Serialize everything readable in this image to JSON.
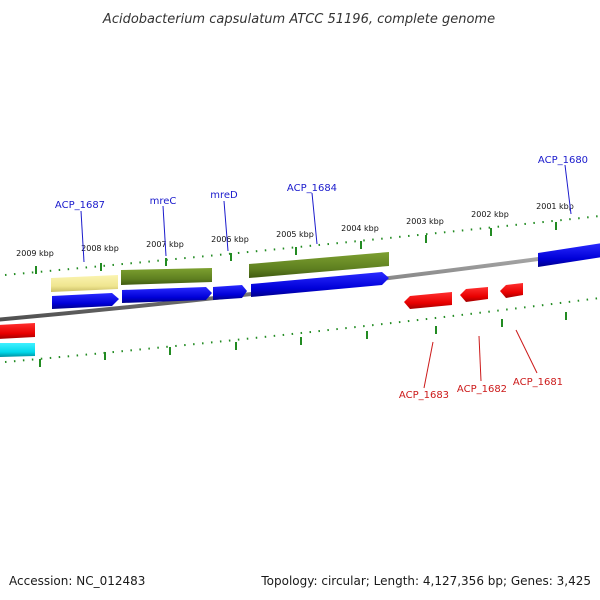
{
  "title": "Acidobacterium capsulatum ATCC 51196, complete genome",
  "footer": {
    "accession": "Accession: NC_012483",
    "summary": "Topology: circular; Length: 4,127,356 bp; Genes: 3,425"
  },
  "kbp_labels": [
    "2009 kbp",
    "2008 kbp",
    "2007 kbp",
    "2006 kbp",
    "2005 kbp",
    "2004 kbp",
    "2003 kbp",
    "2002 kbp",
    "2001 kbp"
  ],
  "forward_gene_labels": [
    "ACP_1687",
    "mreC",
    "mreD",
    "ACP_1684",
    "ACP_1680"
  ],
  "reverse_gene_labels": [
    "ACP_1683",
    "ACP_1682",
    "ACP_1681"
  ],
  "colors": {
    "forward_cds": "#0000ee",
    "reverse_cds": "#ee0000",
    "olive_feature": "#6b8e23",
    "pale_feature": "#f0e68c",
    "cyan_feature": "#00e5ee",
    "backbone": "#808080",
    "ticks": "#228b22",
    "forward_label": "#1a1acc",
    "reverse_label": "#cc1a1a"
  }
}
